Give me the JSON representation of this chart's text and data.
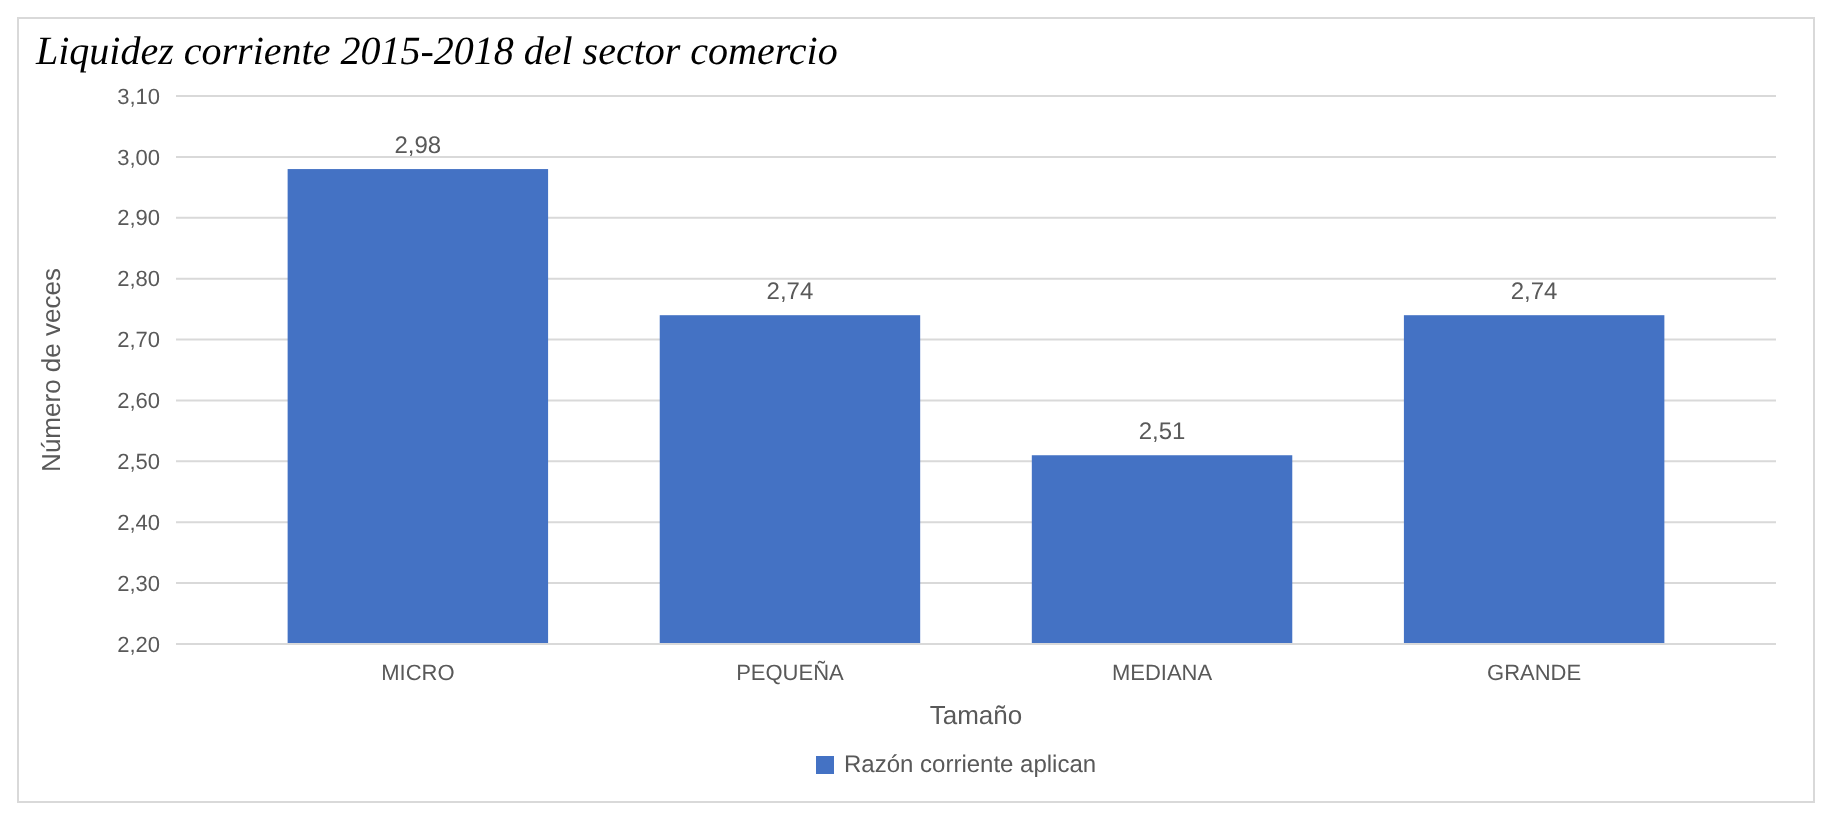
{
  "chart_data": {
    "type": "bar",
    "title": "Liquidez corriente 2015-2018 del sector comercio",
    "xlabel": "Tamaño",
    "ylabel": "Número de veces",
    "categories": [
      "MICRO",
      "PEQUEÑA",
      "MEDIANA",
      "GRANDE"
    ],
    "series": [
      {
        "name": "Razón corriente aplican",
        "color": "#4472c4",
        "values": [
          2.98,
          2.74,
          2.51,
          2.74
        ],
        "value_labels": [
          "2,98",
          "2,74",
          "2,51",
          "2,74"
        ]
      }
    ],
    "ylim": [
      2.2,
      3.1
    ],
    "yticks": [
      {
        "value": 2.2,
        "label": "2,20"
      },
      {
        "value": 2.3,
        "label": "2,30"
      },
      {
        "value": 2.4,
        "label": "2,40"
      },
      {
        "value": 2.5,
        "label": "2,50"
      },
      {
        "value": 2.6,
        "label": "2,60"
      },
      {
        "value": 2.7,
        "label": "2,70"
      },
      {
        "value": 2.8,
        "label": "2,80"
      },
      {
        "value": 2.9,
        "label": "2,90"
      },
      {
        "value": 3.0,
        "label": "3,00"
      },
      {
        "value": 3.1,
        "label": "3,10"
      }
    ],
    "grid": "y",
    "legend": "bottom"
  }
}
